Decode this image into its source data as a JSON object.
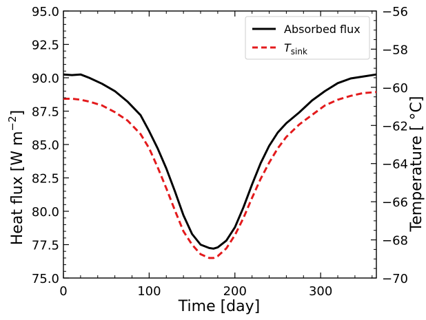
{
  "chart_data": {
    "type": "line",
    "title": "",
    "xlabel": "Time [day]",
    "ylabel_left_prefix": "Heat flux [W m",
    "ylabel_left_exp": "−2",
    "ylabel_left_suffix": "]",
    "ylabel_right": "Temperature [ °C]",
    "xlim": [
      0,
      365
    ],
    "ylim_left": [
      75.0,
      95.0
    ],
    "ylim_right": [
      -70,
      -56
    ],
    "xticks": [
      0,
      100,
      200,
      300
    ],
    "xtick_labels": [
      "0",
      "100",
      "200",
      "300"
    ],
    "yticks_left": [
      75.0,
      77.5,
      80.0,
      82.5,
      85.0,
      87.5,
      90.0,
      92.5,
      95.0
    ],
    "ytick_labels_left": [
      "75.0",
      "77.5",
      "80.0",
      "82.5",
      "85.0",
      "87.5",
      "90.0",
      "92.5",
      "95.0"
    ],
    "yticks_right": [
      -70,
      -68,
      -66,
      -64,
      -62,
      -60,
      -58,
      -56
    ],
    "ytick_labels_right": [
      "−70",
      "−68",
      "−66",
      "−64",
      "−62",
      "−60",
      "−58",
      "−56"
    ],
    "grid": false,
    "legend_position": "top-right",
    "series": [
      {
        "name": "Absorbed flux",
        "axis": "left",
        "color": "#000000",
        "style": "solid",
        "x": [
          0,
          10,
          20,
          30,
          45,
          60,
          75,
          90,
          100,
          110,
          120,
          130,
          140,
          150,
          160,
          170,
          175,
          180,
          190,
          200,
          210,
          220,
          230,
          240,
          250,
          260,
          275,
          290,
          305,
          320,
          335,
          350,
          365
        ],
        "values": [
          90.25,
          90.2,
          90.25,
          90.0,
          89.55,
          89.0,
          88.2,
          87.2,
          86.0,
          84.7,
          83.2,
          81.5,
          79.7,
          78.3,
          77.5,
          77.25,
          77.2,
          77.3,
          77.8,
          78.8,
          80.3,
          82.0,
          83.6,
          84.9,
          85.9,
          86.6,
          87.4,
          88.3,
          89.0,
          89.6,
          89.95,
          90.1,
          90.25
        ]
      },
      {
        "name": "T",
        "name_sub": "sink",
        "axis": "right",
        "color": "#e31a1c",
        "style": "dashed",
        "x": [
          0,
          10,
          20,
          30,
          45,
          60,
          75,
          90,
          100,
          110,
          120,
          130,
          140,
          150,
          160,
          170,
          175,
          180,
          190,
          200,
          210,
          220,
          230,
          240,
          250,
          260,
          275,
          290,
          305,
          320,
          335,
          350,
          365
        ],
        "values": [
          -60.6,
          -60.6,
          -60.65,
          -60.75,
          -60.95,
          -61.3,
          -61.75,
          -62.45,
          -63.2,
          -64.2,
          -65.3,
          -66.45,
          -67.55,
          -68.25,
          -68.75,
          -68.95,
          -68.95,
          -68.85,
          -68.45,
          -67.75,
          -66.85,
          -65.8,
          -64.8,
          -63.95,
          -63.2,
          -62.6,
          -61.95,
          -61.45,
          -60.95,
          -60.65,
          -60.45,
          -60.3,
          -60.25
        ]
      }
    ]
  }
}
